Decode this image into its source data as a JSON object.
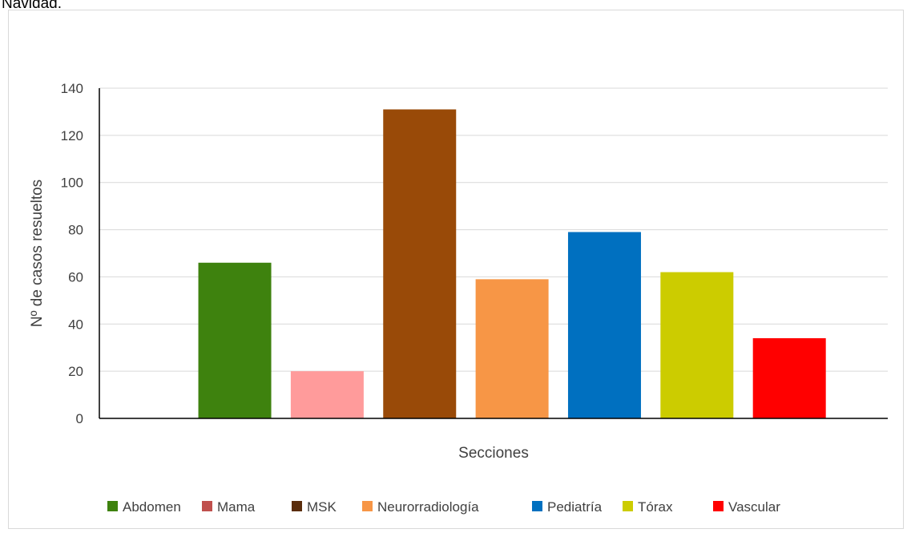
{
  "page": {
    "top_text": "Navidad."
  },
  "chart_data": {
    "type": "bar",
    "title": "",
    "xlabel": "Secciones",
    "ylabel": "Nº de casos resueltos",
    "ylim": [
      0,
      140
    ],
    "yticks": [
      0,
      20,
      40,
      60,
      80,
      100,
      120,
      140
    ],
    "grid": true,
    "legend_position": "bottom",
    "series": [
      {
        "name": "Abdomen",
        "value": 66,
        "color": "#3e820e"
      },
      {
        "name": "Mama",
        "value": 20,
        "color": "#ff9b9b"
      },
      {
        "name": "MSK",
        "value": 131,
        "color": "#994a08"
      },
      {
        "name": "Neurorradiología",
        "value": 59,
        "color": "#f79646"
      },
      {
        "name": "Pediatría",
        "value": 79,
        "color": "#0070c0"
      },
      {
        "name": "Tórax",
        "value": 62,
        "color": "#cccc00"
      },
      {
        "name": "Vascular",
        "value": 34,
        "color": "#ff0000"
      }
    ],
    "legend_colors": [
      "#3e820e",
      "#c0504d",
      "#5a2d0c",
      "#f79646",
      "#0070c0",
      "#cccc00",
      "#ff0000"
    ]
  }
}
